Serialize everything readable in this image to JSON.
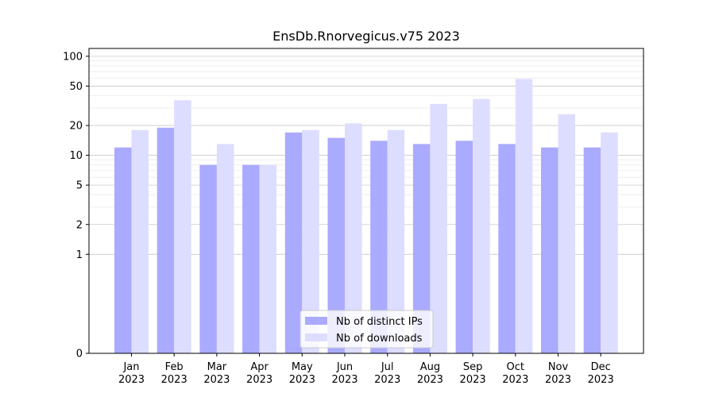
{
  "chart_data": {
    "type": "bar",
    "title": "EnsDb.Rnorvegicus.v75 2023",
    "xlabel": "",
    "ylabel": "",
    "yscale": "symlog",
    "ylim": [
      0,
      120
    ],
    "grid": true,
    "legend_position": "bottom-center",
    "categories": [
      "Jan",
      "Feb",
      "Mar",
      "Apr",
      "May",
      "Jun",
      "Jul",
      "Aug",
      "Sep",
      "Oct",
      "Nov",
      "Dec"
    ],
    "category_year": "2023",
    "y_ticks": [
      0,
      1,
      2,
      5,
      10,
      20,
      50,
      100
    ],
    "series": [
      {
        "name": "Nb of distinct IPs",
        "color": "#aaaaff",
        "values": [
          12,
          19,
          8,
          8,
          17,
          15,
          14,
          13,
          14,
          13,
          12,
          12
        ]
      },
      {
        "name": "Nb of downloads",
        "color": "#ddddff",
        "values": [
          18,
          36,
          13,
          8,
          18,
          21,
          18,
          33,
          37,
          59,
          26,
          17
        ]
      }
    ]
  }
}
